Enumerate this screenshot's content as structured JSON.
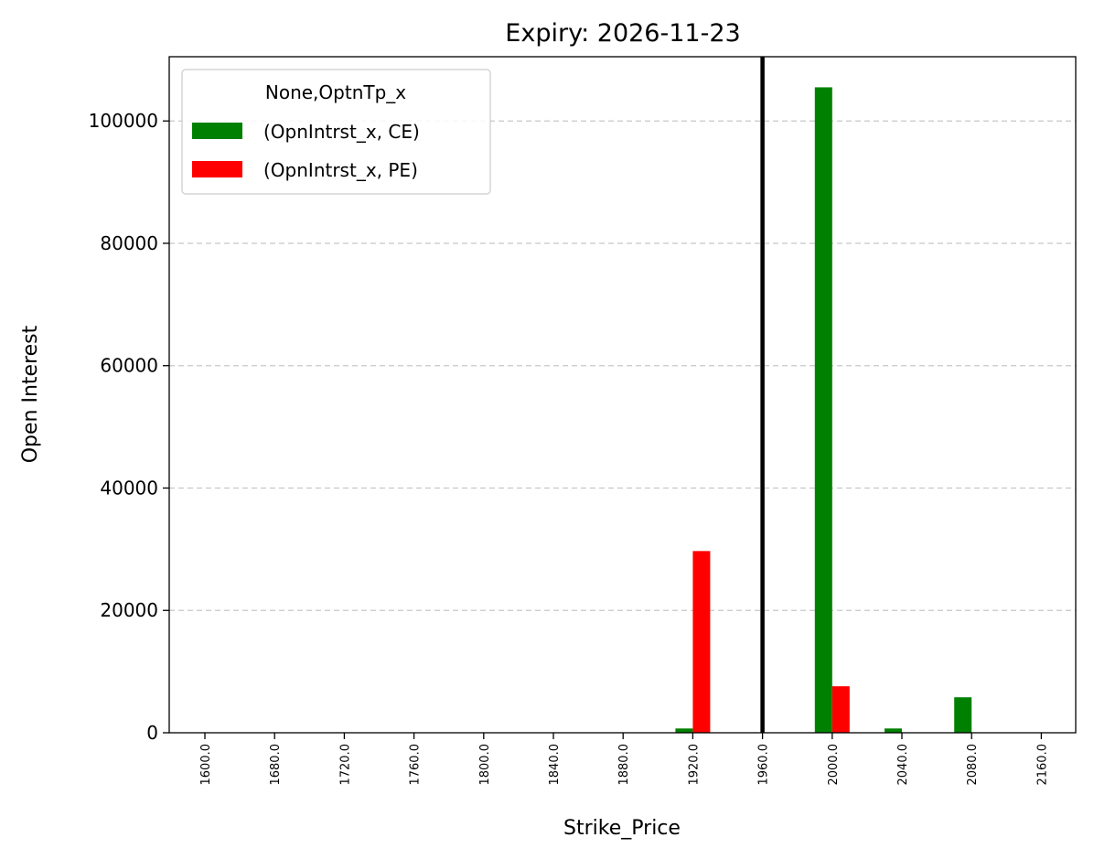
{
  "chart_data": {
    "type": "bar",
    "title": "Expiry: 2026-11-23",
    "xlabel": "Strike_Price",
    "ylabel": "Open Interest",
    "categories": [
      "1600.0",
      "1680.0",
      "1720.0",
      "1760.0",
      "1800.0",
      "1840.0",
      "1880.0",
      "1920.0",
      "1960.0",
      "2000.0",
      "2040.0",
      "2080.0",
      "2160.0"
    ],
    "series": [
      {
        "name": "(OpnIntrst_x, CE)",
        "color": "#008000",
        "values": [
          0,
          0,
          0,
          0,
          0,
          0,
          0,
          700,
          0,
          105500,
          700,
          5800,
          0
        ]
      },
      {
        "name": "(OpnIntrst_x, PE)",
        "color": "#ff0000",
        "values": [
          0,
          0,
          0,
          0,
          0,
          0,
          0,
          29700,
          0,
          7600,
          0,
          0,
          0
        ]
      }
    ],
    "ylim": [
      0,
      110500
    ],
    "yticks": [
      0,
      20000,
      40000,
      60000,
      80000,
      100000
    ],
    "grid": "y-dashed",
    "legend": {
      "title": "None,OptnTp_x",
      "placement": "top-left"
    },
    "reference_line": {
      "category": "1960.0",
      "color": "#000000"
    }
  }
}
